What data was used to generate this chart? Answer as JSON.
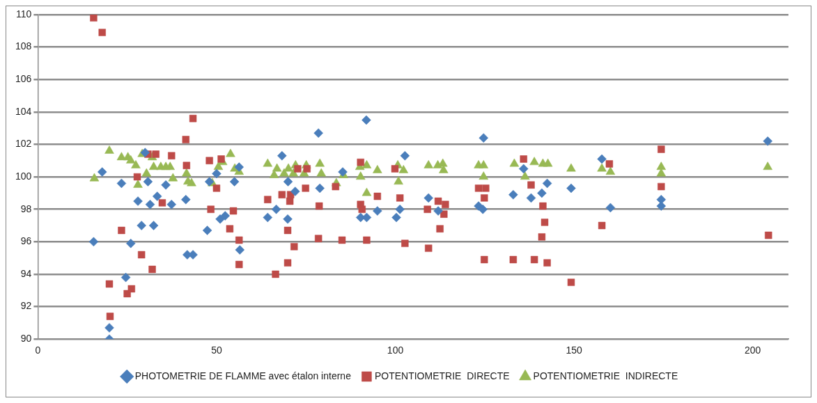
{
  "chart_data": {
    "type": "scatter",
    "xlim": [
      0,
      210
    ],
    "xticks": [
      0,
      50,
      100,
      150,
      200
    ],
    "ylim": [
      90,
      110
    ],
    "yticks": [
      90,
      92,
      94,
      96,
      98,
      100,
      102,
      104,
      106,
      108,
      110
    ],
    "grid": "y",
    "legend": "bottom",
    "series": [
      {
        "name": "PHOTOMETRIE DE FLAMME avec étalon interne",
        "color": "#4a7ebb",
        "marker": "diamond",
        "x": [
          15.6,
          18,
          20,
          20,
          23.4,
          24.6,
          26,
          28,
          29,
          30,
          30.8,
          31.4,
          32.4,
          33.4,
          35.8,
          37.4,
          41.4,
          41.8,
          43.4,
          47.4,
          48,
          50,
          51,
          52.4,
          55,
          56.3,
          56.5,
          64.3,
          66.7,
          68.3,
          69.9,
          70,
          72,
          78.5,
          78.9,
          85.3,
          90.3,
          91.9,
          92,
          95,
          100.3,
          101.3,
          102.7,
          109.3,
          112,
          123.3,
          124.5,
          124.7,
          133,
          135.9,
          138,
          141,
          142.5,
          149.2,
          157.8,
          160.2,
          174.4,
          174.4,
          204.2
        ],
        "values": [
          96.0,
          100.3,
          90.7,
          90.0,
          99.6,
          93.8,
          95.9,
          98.5,
          97.0,
          101.5,
          99.7,
          98.3,
          97.0,
          98.8,
          99.5,
          98.3,
          98.6,
          95.2,
          95.2,
          96.7,
          99.7,
          100.2,
          97.4,
          97.6,
          99.7,
          100.6,
          95.5,
          97.5,
          98.0,
          101.3,
          97.4,
          99.7,
          99.1,
          102.7,
          99.3,
          100.3,
          97.5,
          103.5,
          97.5,
          97.9,
          97.5,
          98.0,
          101.3,
          98.7,
          97.9,
          98.2,
          98.0,
          102.4,
          98.9,
          100.5,
          98.7,
          99.0,
          99.6,
          99.3,
          101.1,
          98.1,
          98.6,
          98.2,
          102.2
        ]
      },
      {
        "name": "POTENTIOMETRIE  DIRECTE",
        "color": "#be4b48",
        "marker": "square",
        "x": [
          15.6,
          18,
          20,
          20.2,
          23.4,
          25,
          26.2,
          27.8,
          29,
          30.8,
          32,
          33,
          34.8,
          37.4,
          41.4,
          41.6,
          43.4,
          48,
          48.4,
          50,
          51.3,
          53.7,
          54.7,
          56.3,
          56.3,
          64.3,
          66.5,
          68.3,
          69.9,
          69.9,
          70.5,
          70.7,
          71.7,
          72.7,
          74.9,
          75.3,
          78.5,
          78.7,
          83.3,
          85.1,
          90.3,
          90.3,
          90.7,
          92,
          95,
          99.9,
          101.3,
          102.7,
          109,
          109.3,
          112,
          112.5,
          113.6,
          114,
          123.3,
          124.9,
          124.9,
          125.3,
          133,
          135.9,
          138,
          138.9,
          141,
          141.3,
          141.8,
          142.5,
          149.2,
          157.8,
          159.9,
          174.4,
          174.4,
          204.4
        ],
        "values": [
          109.8,
          108.9,
          93.4,
          91.4,
          96.7,
          92.8,
          93.1,
          100.0,
          95.2,
          101.4,
          94.3,
          101.4,
          98.4,
          101.3,
          102.3,
          100.7,
          103.6,
          101.0,
          98.0,
          99.3,
          101.1,
          96.8,
          97.9,
          96.1,
          94.6,
          98.6,
          94.0,
          98.9,
          96.7,
          94.7,
          98.5,
          98.9,
          95.7,
          100.5,
          99.3,
          100.5,
          96.2,
          98.2,
          99.4,
          96.1,
          100.9,
          98.3,
          98.0,
          96.1,
          98.8,
          100.5,
          98.7,
          95.9,
          98.0,
          95.6,
          98.5,
          96.8,
          97.7,
          98.3,
          99.3,
          98.7,
          94.9,
          99.3,
          94.9,
          101.1,
          99.5,
          94.9,
          96.3,
          98.2,
          97.2,
          94.7,
          93.5,
          97.0,
          100.8,
          101.7,
          99.4,
          96.4
        ]
      },
      {
        "name": "POTENTIOMETRIE  INDIRECTE",
        "color": "#98b954",
        "marker": "triangle",
        "x": [
          15.8,
          20,
          23.4,
          25.2,
          26,
          27.4,
          28,
          29.2,
          30.4,
          32,
          32.4,
          34.4,
          35.8,
          37,
          37.8,
          41.6,
          42,
          43,
          47.8,
          48.8,
          50.5,
          51.7,
          53.9,
          55.1,
          56.3,
          64.3,
          66.1,
          66.9,
          68.9,
          70.1,
          71.5,
          72.1,
          74.5,
          75.1,
          78.9,
          79.3,
          83.5,
          85.5,
          90.1,
          90.3,
          92,
          92,
          95,
          100.7,
          100.9,
          102.3,
          109.3,
          111.9,
          113.3,
          113.5,
          123.3,
          124.7,
          124.7,
          133.3,
          136.3,
          138.9,
          141.3,
          142.7,
          149.2,
          157.8,
          160.2,
          174.4,
          174.4,
          204.2
        ],
        "values": [
          99.9,
          101.6,
          101.2,
          101.2,
          101.0,
          100.7,
          99.5,
          101.4,
          100.2,
          101.2,
          100.6,
          100.6,
          100.6,
          100.6,
          99.9,
          100.2,
          99.7,
          99.6,
          null,
          99.6,
          100.6,
          100.9,
          101.4,
          100.5,
          100.3,
          100.8,
          100.1,
          100.5,
          100.2,
          100.5,
          100.2,
          100.7,
          100.2,
          100.7,
          100.8,
          100.2,
          99.6,
          100.1,
          100.6,
          100.0,
          100.7,
          99.0,
          100.4,
          100.7,
          99.7,
          100.4,
          100.7,
          100.7,
          100.8,
          100.4,
          100.7,
          100.7,
          100.0,
          100.8,
          100.0,
          100.9,
          100.8,
          100.8,
          100.5,
          100.5,
          100.3,
          100.6,
          100.2,
          100.6
        ]
      }
    ]
  }
}
